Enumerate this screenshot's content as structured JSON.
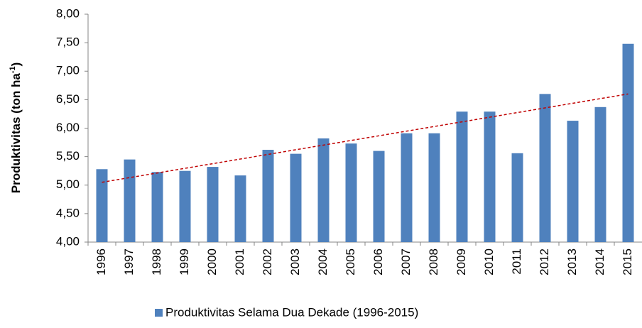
{
  "chart_data": {
    "type": "bar",
    "y_label": {
      "text": "Produktivitas (ton ha",
      "sup": "-1",
      "suffix": ")"
    },
    "categories": [
      "1996",
      "1997",
      "1998",
      "1999",
      "2000",
      "2001",
      "2002",
      "2003",
      "2004",
      "2005",
      "2006",
      "2007",
      "2008",
      "2009",
      "2010",
      "2011",
      "2012",
      "2013",
      "2014",
      "2015"
    ],
    "series": [
      {
        "name": "Produktivitas Selama Dua Dekade (1996-2015)",
        "color": "#4f81bd",
        "values": [
          5.28,
          5.45,
          5.23,
          5.25,
          5.32,
          5.17,
          5.62,
          5.55,
          5.82,
          5.73,
          5.6,
          5.91,
          5.91,
          6.29,
          6.29,
          5.56,
          6.6,
          6.13,
          6.37,
          7.48
        ]
      }
    ],
    "trendline": {
      "color": "#c00000",
      "start": 5.05,
      "end": 6.6
    },
    "ylim": [
      4,
      8
    ],
    "yticks": [
      {
        "value": 4,
        "label": "4,00"
      },
      {
        "value": 4.5,
        "label": "4,50"
      },
      {
        "value": 5,
        "label": "5,00"
      },
      {
        "value": 5.5,
        "label": "5,50"
      },
      {
        "value": 6,
        "label": "6,00"
      },
      {
        "value": 6.5,
        "label": "6,50"
      },
      {
        "value": 7,
        "label": "7,00"
      },
      {
        "value": 7.5,
        "label": "7,50"
      },
      {
        "value": 8,
        "label": "8,00"
      }
    ],
    "grid": false,
    "legend": "bottom"
  }
}
